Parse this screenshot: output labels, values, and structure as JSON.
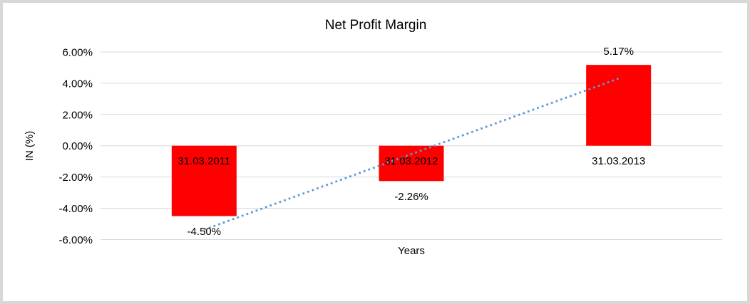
{
  "chart_data": {
    "type": "bar",
    "title": "Net Profit Margin",
    "xlabel": "Years",
    "ylabel": "IN (%)",
    "categories": [
      "31.03.2011",
      "31.03.2012",
      "31.03.2013"
    ],
    "values": [
      -4.5,
      -2.26,
      5.17
    ],
    "data_labels": [
      "-4.50%",
      "-2.26%",
      "5.17%"
    ],
    "y_ticks": [
      6,
      4,
      2,
      0,
      -2,
      -4,
      -6
    ],
    "y_tick_labels": [
      "6.00%",
      "4.00%",
      "2.00%",
      "0.00%",
      "-2.00%",
      "-4.00%",
      "-6.00%"
    ],
    "ylim": [
      -6,
      6
    ],
    "grid": true,
    "legend": "none",
    "bar_color": "#FF0000",
    "gridline_color": "#D9D9D9",
    "text_color": "#000000",
    "frame_color": "#D8D8D8",
    "trendline": {
      "style": "dotted",
      "color": "#5B9BD5",
      "start_value": -5.37,
      "end_value": 4.3
    }
  }
}
